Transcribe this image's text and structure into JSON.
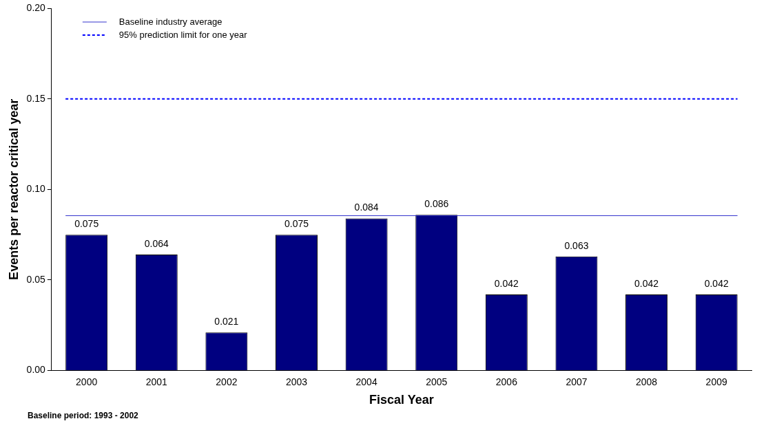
{
  "chart_data": {
    "type": "bar",
    "xlabel": "Fiscal Year",
    "ylabel": "Events per reactor critical year",
    "categories": [
      "2000",
      "2001",
      "2002",
      "2003",
      "2004",
      "2005",
      "2006",
      "2007",
      "2008",
      "2009"
    ],
    "values": [
      0.075,
      0.064,
      0.021,
      0.075,
      0.084,
      0.086,
      0.042,
      0.063,
      0.042,
      0.042
    ],
    "color": "#000080",
    "data_labels": true,
    "ylim": [
      0,
      0.2
    ],
    "yticks": [
      {
        "value": 0,
        "label": "0.00"
      },
      {
        "value": 0.05,
        "label": "0.05"
      },
      {
        "value": 0.1,
        "label": "0.10"
      },
      {
        "value": 0.15,
        "label": "0.15"
      },
      {
        "value": 0.2,
        "label": "0.20"
      }
    ],
    "grid": false,
    "legend": "top left",
    "ref_lines": [
      {
        "axis": "y",
        "value": 0.0855,
        "label": "Baseline industry average",
        "color": "#3333cc",
        "line_style": "solid"
      },
      {
        "axis": "y",
        "value": 0.15,
        "label": "95% prediction limit for one year",
        "color": "#0000ff",
        "line_style": "dashed"
      }
    ],
    "annotations": [
      "Baseline period:  1993 - 2002"
    ]
  }
}
